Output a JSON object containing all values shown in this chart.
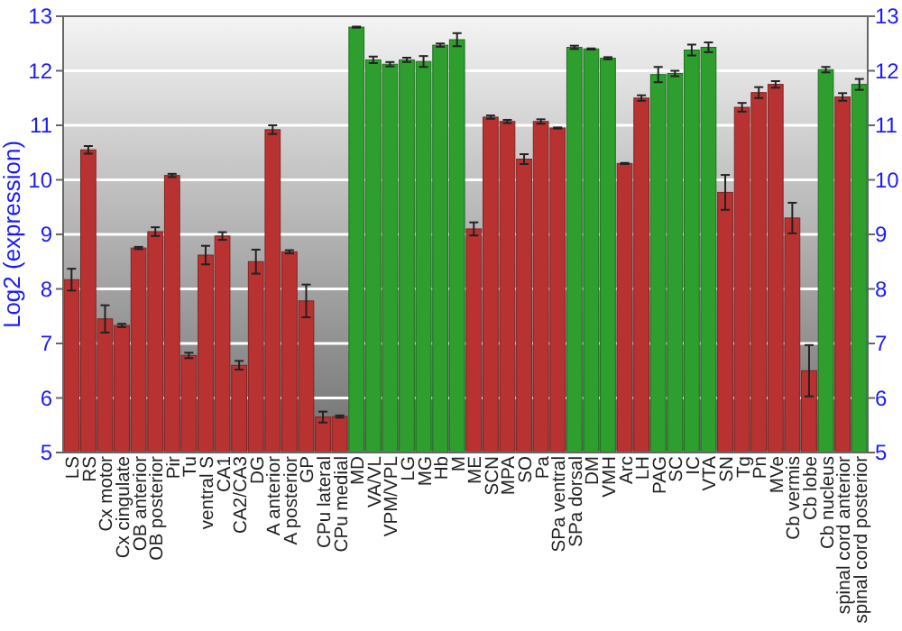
{
  "chart_data": {
    "type": "bar",
    "ylabel": "Log2 (expression)",
    "categories": [
      "LS",
      "RS",
      "Cx motor",
      "Cx cingulate",
      "OB anterior",
      "OB posterior",
      "Pir",
      "Tu",
      "ventral S",
      "CA1",
      "CA2/CA3",
      "DG",
      "A anterior",
      "A posterior",
      "GP",
      "CPu lateral",
      "CPu medial",
      "MD",
      "VA/VL",
      "VPM/VPL",
      "LG",
      "MG",
      "Hb",
      "M",
      "ME",
      "SCN",
      "MPA",
      "SO",
      "Pa",
      "SPa ventral",
      "SPa dorsal",
      "DM",
      "VMH",
      "Arc",
      "LH",
      "PAG",
      "SC",
      "IC",
      "VTA",
      "SN",
      "Tg",
      "Pn",
      "MVe",
      "Cb vermis",
      "Cb lobe",
      "Cb nucleus",
      "spinal cord anterior",
      "spinal cord posterior"
    ],
    "values": [
      8.17,
      10.55,
      7.45,
      7.33,
      8.75,
      9.05,
      10.08,
      6.78,
      8.62,
      8.97,
      6.6,
      8.5,
      10.92,
      8.68,
      7.78,
      5.65,
      5.66,
      12.8,
      12.2,
      12.12,
      12.2,
      12.17,
      12.47,
      12.57,
      9.1,
      11.15,
      11.07,
      10.38,
      11.07,
      10.95,
      12.43,
      12.4,
      12.23,
      10.3,
      11.5,
      11.93,
      11.95,
      12.38,
      12.43,
      9.77,
      11.33,
      11.6,
      11.75,
      9.3,
      6.5,
      12.02,
      11.52,
      11.75
    ],
    "errors": [
      0.2,
      0.07,
      0.25,
      0.03,
      0.02,
      0.08,
      0.03,
      0.05,
      0.17,
      0.07,
      0.08,
      0.22,
      0.08,
      0.03,
      0.3,
      0.1,
      0.02,
      0.01,
      0.06,
      0.04,
      0.04,
      0.1,
      0.03,
      0.12,
      0.12,
      0.03,
      0.03,
      0.09,
      0.04,
      0.01,
      0.03,
      0.01,
      0.02,
      0.01,
      0.05,
      0.14,
      0.05,
      0.1,
      0.09,
      0.32,
      0.08,
      0.1,
      0.06,
      0.28,
      0.47,
      0.05,
      0.07,
      0.1
    ],
    "colors": [
      "#b83232",
      "#b83232",
      "#b83232",
      "#b83232",
      "#b83232",
      "#b83232",
      "#b83232",
      "#b83232",
      "#b83232",
      "#b83232",
      "#b83232",
      "#b83232",
      "#b83232",
      "#b83232",
      "#b83232",
      "#b83232",
      "#b83232",
      "#2e9e2e",
      "#2e9e2e",
      "#2e9e2e",
      "#2e9e2e",
      "#2e9e2e",
      "#2e9e2e",
      "#2e9e2e",
      "#b83232",
      "#b83232",
      "#b83232",
      "#b83232",
      "#b83232",
      "#b83232",
      "#2e9e2e",
      "#2e9e2e",
      "#2e9e2e",
      "#b83232",
      "#b83232",
      "#2e9e2e",
      "#2e9e2e",
      "#2e9e2e",
      "#2e9e2e",
      "#b83232",
      "#b83232",
      "#b83232",
      "#b83232",
      "#b83232",
      "#b83232",
      "#2e9e2e",
      "#b83232",
      "#2e9e2e"
    ],
    "ylim": [
      5,
      13
    ],
    "yticks": [
      5,
      6,
      7,
      8,
      9,
      10,
      11,
      12,
      13
    ],
    "y2lim": [
      5,
      13
    ],
    "y2ticks": [
      5,
      6,
      7,
      8,
      9,
      10,
      11,
      12,
      13
    ],
    "grid": "y"
  }
}
